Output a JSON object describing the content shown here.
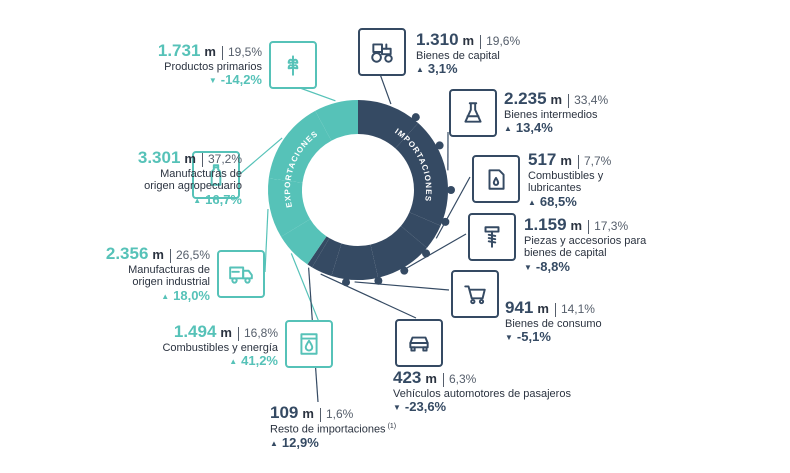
{
  "colors": {
    "exports": "#56c2b8",
    "imports": "#354a63",
    "text": "#2b3340"
  },
  "chart_data": {
    "type": "pie",
    "center_labels": {
      "exports": "EXPORTACIONES",
      "imports": "IMPORTACIONES"
    },
    "exports": [
      {
        "key": "primarios",
        "value": "1.731",
        "unit": "m",
        "share": "19,5%",
        "name": [
          "Productos primarios"
        ],
        "change": "-14,2%",
        "direction": "down",
        "icon": "wheat-icon"
      },
      {
        "key": "moa",
        "value": "3.301",
        "unit": "m",
        "share": "37,2%",
        "name": [
          "Manufacturas de",
          "origen agropecuario"
        ],
        "change": "16,7%",
        "direction": "up",
        "icon": "bottle-icon"
      },
      {
        "key": "moi",
        "value": "2.356",
        "unit": "m",
        "share": "26,5%",
        "name": [
          "Manufacturas de",
          "origen industrial"
        ],
        "change": "18,0%",
        "direction": "up",
        "icon": "truck-icon"
      },
      {
        "key": "combustibles_exp",
        "value": "1.494",
        "unit": "m",
        "share": "16,8%",
        "name": [
          "Combustibles y energía"
        ],
        "change": "41,2%",
        "direction": "up",
        "icon": "fuel-drop-icon"
      }
    ],
    "imports": [
      {
        "key": "capital",
        "value": "1.310",
        "unit": "m",
        "share": "19,6%",
        "name": [
          "Bienes de capital"
        ],
        "change": "3,1%",
        "direction": "up",
        "icon": "tractor-icon"
      },
      {
        "key": "intermedios",
        "value": "2.235",
        "unit": "m",
        "share": "33,4%",
        "name": [
          "Bienes intermedios"
        ],
        "change": "13,4%",
        "direction": "up",
        "icon": "flask-icon"
      },
      {
        "key": "combustibles_imp",
        "value": "517",
        "unit": "m",
        "share": "7,7%",
        "name": [
          "Combustibles y",
          "lubricantes"
        ],
        "change": "68,5%",
        "direction": "up",
        "icon": "oil-can-icon"
      },
      {
        "key": "piezas",
        "value": "1.159",
        "unit": "m",
        "share": "17,3%",
        "name": [
          "Piezas y accesorios para",
          "bienes de capital"
        ],
        "change": "-8,8%",
        "direction": "down",
        "icon": "screw-icon"
      },
      {
        "key": "consumo",
        "value": "941",
        "unit": "m",
        "share": "14,1%",
        "name": [
          "Bienes de consumo"
        ],
        "change": "-5,1%",
        "direction": "down",
        "icon": "cart-icon"
      },
      {
        "key": "vehiculos",
        "value": "423",
        "unit": "m",
        "share": "6,3%",
        "name": [
          "Vehículos automotores de pasajeros"
        ],
        "change": "-23,6%",
        "direction": "down",
        "icon": "car-icon"
      },
      {
        "key": "resto",
        "value": "109",
        "unit": "m",
        "share": "1,6%",
        "name": [
          "Resto de importaciones"
        ],
        "footnote": "(1)",
        "change": "12,9%",
        "direction": "up",
        "icon": ""
      }
    ]
  }
}
